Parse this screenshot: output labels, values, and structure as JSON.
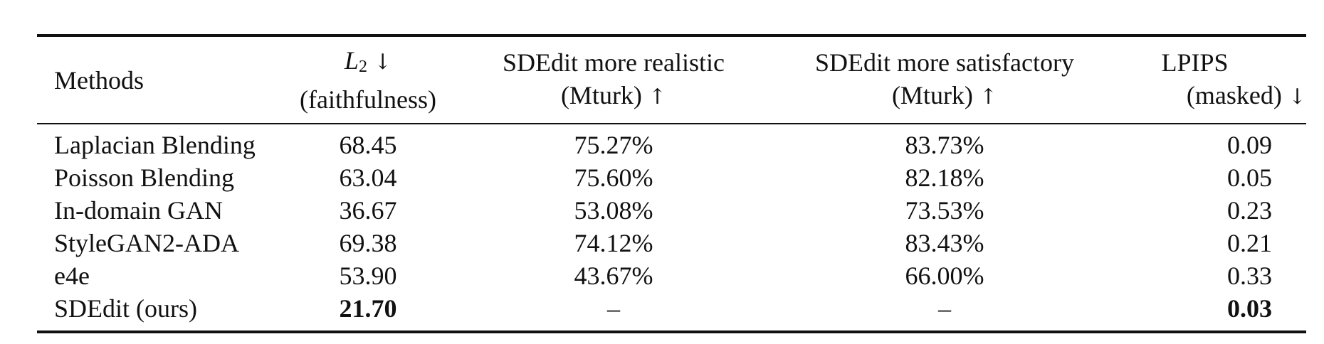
{
  "table": {
    "headers": [
      {
        "key": "methods",
        "lines": [
          "Methods"
        ]
      },
      {
        "key": "l2",
        "line1_var": "L",
        "line1_sub": "2",
        "line1_arrow": "↓",
        "line2": "(faithfulness)"
      },
      {
        "key": "realistic",
        "line1": "SDEdit more realistic",
        "line2_text": "(Mturk)",
        "line2_arrow": "↑"
      },
      {
        "key": "satisfactory",
        "line1": "SDEdit more satisfactory",
        "line2_text": "(Mturk)",
        "line2_arrow": "↑"
      },
      {
        "key": "lpips",
        "line1": "LPIPS",
        "line2_text": "(masked)",
        "line2_arrow": "↓"
      }
    ],
    "rows": [
      {
        "method": "Laplacian Blending",
        "l2": "68.45",
        "realistic": "75.27%",
        "satisfactory": "83.73%",
        "lpips": "0.09"
      },
      {
        "method": "Poisson Blending",
        "l2": "63.04",
        "realistic": "75.60%",
        "satisfactory": "82.18%",
        "lpips": "0.05"
      },
      {
        "method": "In-domain GAN",
        "l2": "36.67",
        "realistic": "53.08%",
        "satisfactory": "73.53%",
        "lpips": "0.23"
      },
      {
        "method": "StyleGAN2-ADA",
        "l2": "69.38",
        "realistic": "74.12%",
        "satisfactory": "83.43%",
        "lpips": "0.21"
      },
      {
        "method": "e4e",
        "l2": "53.90",
        "realistic": "43.67%",
        "satisfactory": "66.00%",
        "lpips": "0.33"
      },
      {
        "method": "SDEdit (ours)",
        "l2": "21.70",
        "realistic": "–",
        "satisfactory": "–",
        "lpips": "0.03"
      }
    ]
  }
}
